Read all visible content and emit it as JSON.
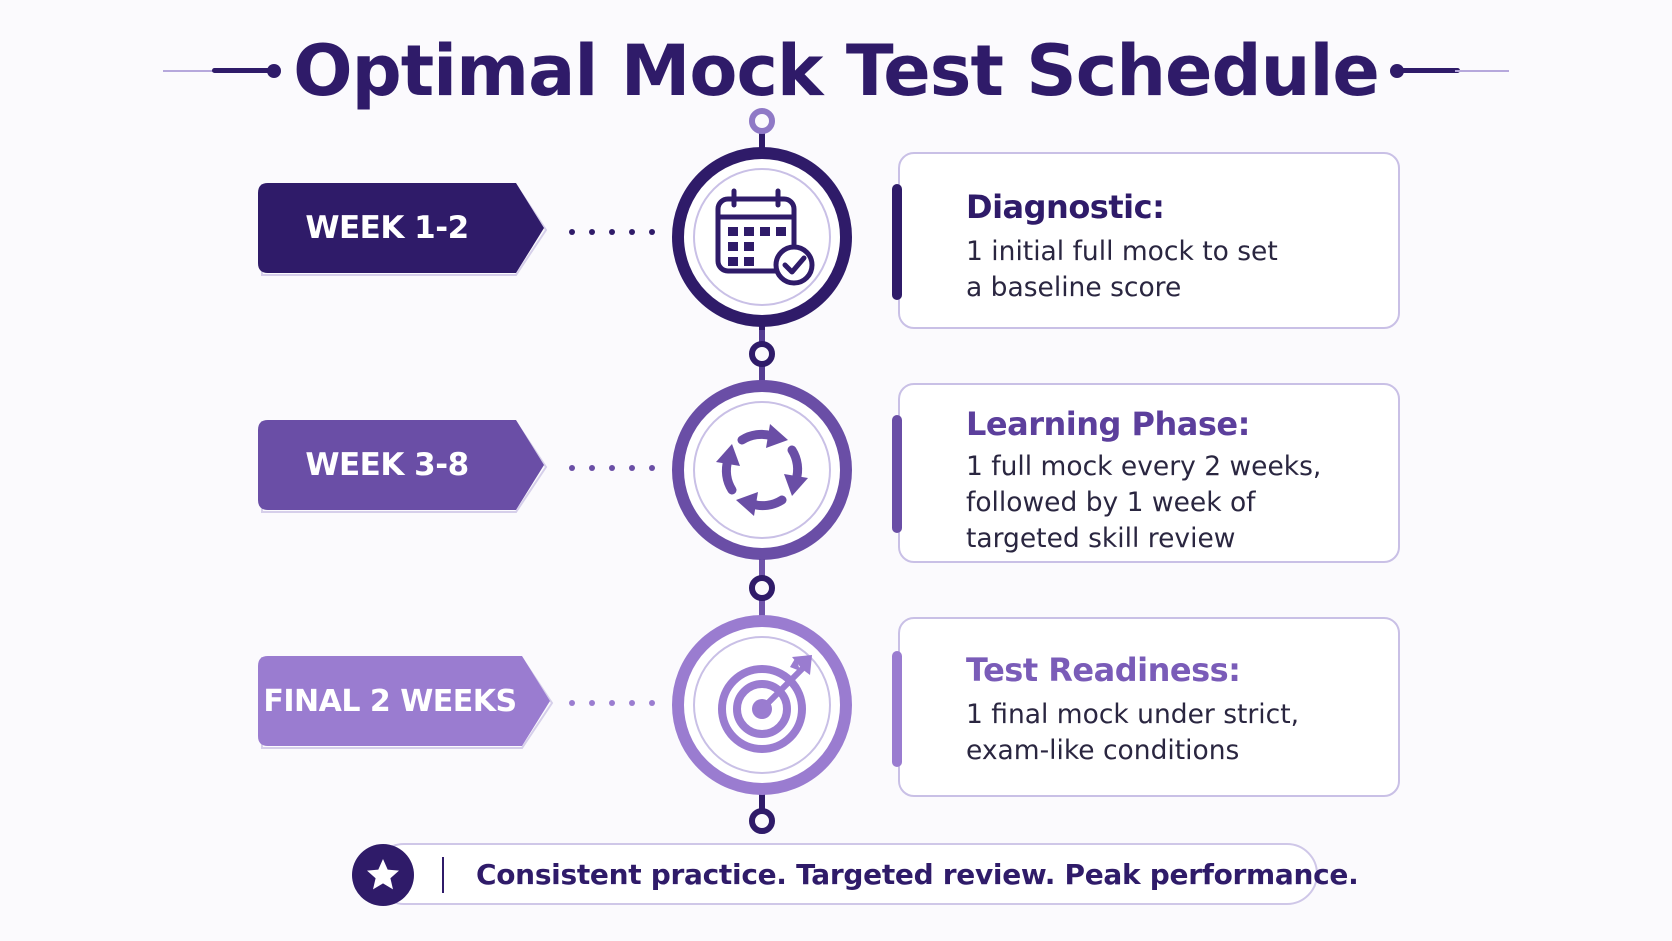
{
  "title": "Optimal Mock Test Schedule",
  "colors": {
    "dark": "#2f1b69",
    "medium": "#6a4ea6",
    "light": "#9a7cd0",
    "border": "#c9c0e6"
  },
  "stages": [
    {
      "tag": "WEEK 1-2",
      "icon": "calendar-check-icon",
      "heading": "Diagnostic:",
      "lines": [
        "1 initial full mock to set",
        "a baseline score"
      ]
    },
    {
      "tag": "WEEK 3-8",
      "icon": "cycle-arrows-icon",
      "heading": "Learning Phase:",
      "lines": [
        "1 full mock every 2 weeks,",
        "followed by 1 week of",
        "targeted skill review"
      ]
    },
    {
      "tag": "FINAL 2 WEEKS",
      "icon": "target-arrow-icon",
      "heading": "Test Readiness:",
      "lines": [
        "1 final mock under strict,",
        "exam-like conditions"
      ]
    }
  ],
  "footer": {
    "icon": "star-icon",
    "text": "Consistent practice. Targeted review. Peak performance."
  }
}
